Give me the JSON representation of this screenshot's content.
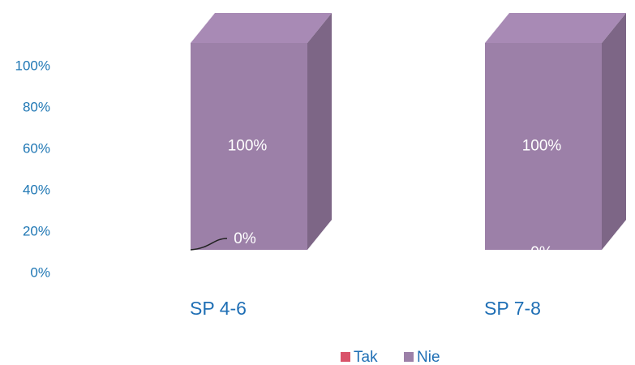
{
  "chart_data": {
    "type": "bar3d_stacked",
    "categories": [
      "SP 4-6",
      "SP 7-8"
    ],
    "series": [
      {
        "name": "Tak",
        "color": "#d9536a",
        "values": [
          0,
          0
        ],
        "value_labels": [
          "0%",
          "0%"
        ]
      },
      {
        "name": "Nie",
        "color": "#9c80a8",
        "values": [
          100,
          100
        ],
        "value_labels": [
          "100%",
          "100%"
        ]
      }
    ],
    "ylim": [
      0,
      100
    ],
    "yticks": [
      {
        "value": 0,
        "label": "0%"
      },
      {
        "value": 20,
        "label": "20%"
      },
      {
        "value": 40,
        "label": "40%"
      },
      {
        "value": 60,
        "label": "60%"
      },
      {
        "value": 80,
        "label": "80%"
      },
      {
        "value": 100,
        "label": "100%"
      }
    ],
    "legend": "bottom"
  }
}
